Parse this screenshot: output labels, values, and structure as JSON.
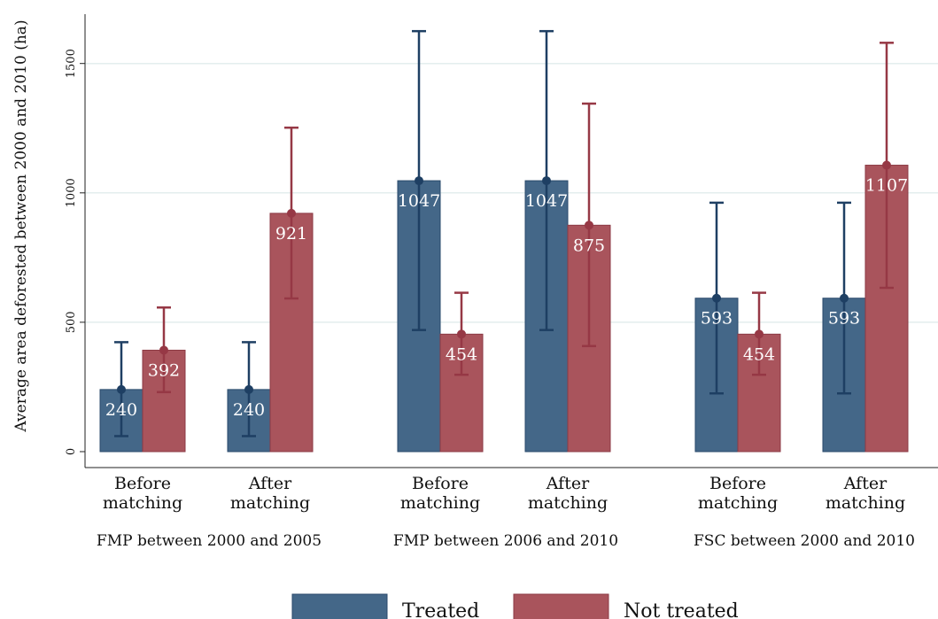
{
  "colors": {
    "treated": "#446788",
    "treated_edge": "#2a4a6b",
    "treated_whisker": "#1e3f63",
    "not_treated": "#a9545c",
    "not_treated_edge": "#8c3a44",
    "not_treated_whisker": "#963845",
    "grid": "#e3eeee"
  },
  "chart_data": {
    "type": "bar",
    "ylabel": "Average area deforested between 2000 and 2010 (ha)",
    "ylim": [
      0,
      1700
    ],
    "yticks": [
      0,
      500,
      1000,
      1500
    ],
    "grid": true,
    "legend_position": "bottom",
    "groups": [
      {
        "label": "FMP between 2000 and 2005",
        "categories": [
          "Before matching",
          "After matching"
        ]
      },
      {
        "label": "FMP between 2006 and 2010",
        "categories": [
          "Before matching",
          "After matching"
        ]
      },
      {
        "label": "FSC between 2000 and 2010",
        "categories": [
          "Before matching",
          "After matching"
        ]
      }
    ],
    "series": [
      {
        "name": "Treated",
        "values": [
          240,
          240,
          1047,
          1047,
          593,
          593
        ],
        "ci_low": [
          60,
          60,
          470,
          470,
          225,
          225
        ],
        "ci_high": [
          423,
          423,
          1625,
          1625,
          962,
          962
        ]
      },
      {
        "name": "Not treated",
        "values": [
          392,
          921,
          454,
          875,
          454,
          1107
        ],
        "ci_low": [
          230,
          592,
          297,
          408,
          297,
          633
        ],
        "ci_high": [
          557,
          1252,
          614,
          1345,
          614,
          1580
        ]
      }
    ]
  }
}
